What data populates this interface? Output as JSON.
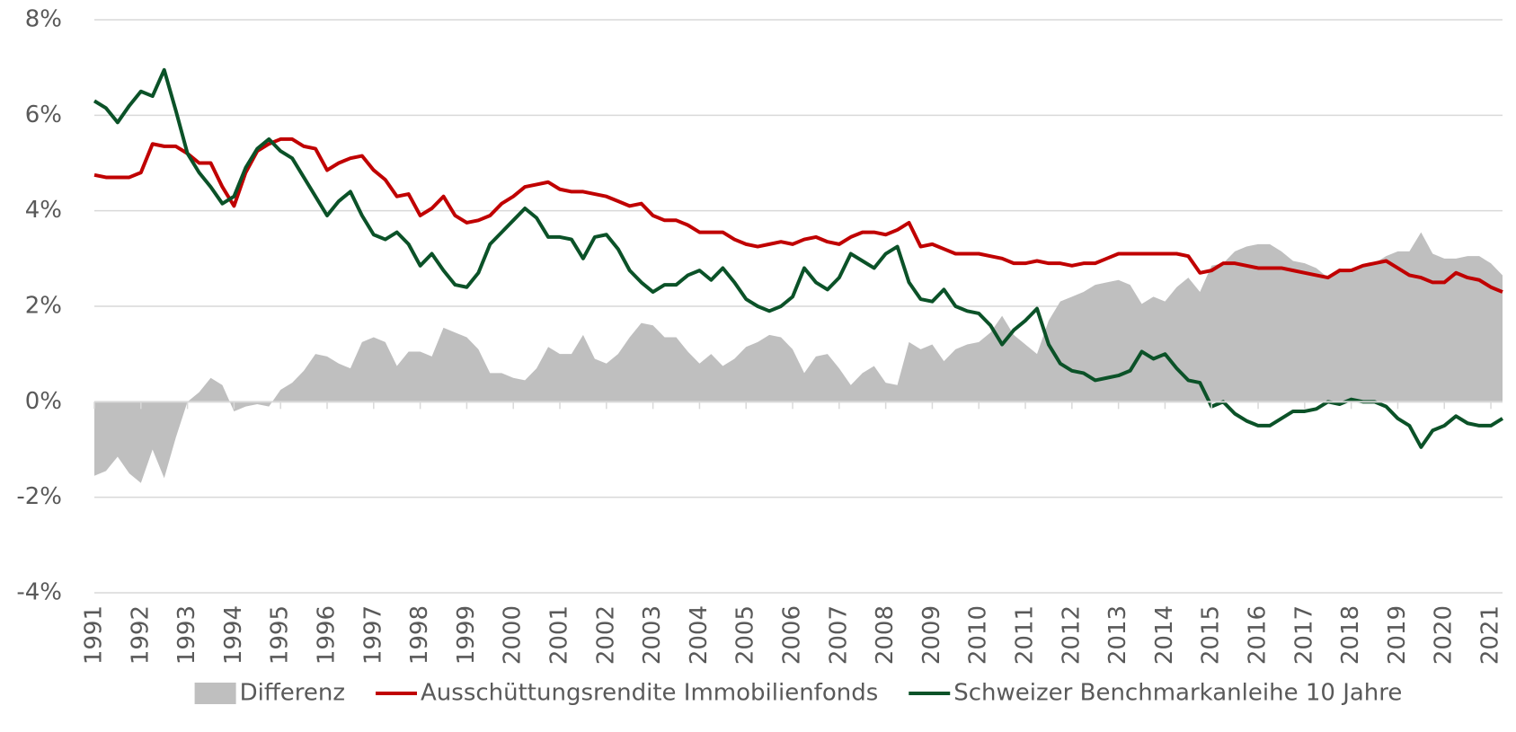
{
  "chart_data": {
    "type": "line",
    "x": [
      1991,
      1991.25,
      1991.5,
      1991.75,
      1992,
      1992.25,
      1992.5,
      1992.75,
      1993,
      1993.25,
      1993.5,
      1993.75,
      1994,
      1994.25,
      1994.5,
      1994.75,
      1995,
      1995.25,
      1995.5,
      1995.75,
      1996,
      1996.25,
      1996.5,
      1996.75,
      1997,
      1997.25,
      1997.5,
      1997.75,
      1998,
      1998.25,
      1998.5,
      1998.75,
      1999,
      1999.25,
      1999.5,
      1999.75,
      2000,
      2000.25,
      2000.5,
      2000.75,
      2001,
      2001.25,
      2001.5,
      2001.75,
      2002,
      2002.25,
      2002.5,
      2002.75,
      2003,
      2003.25,
      2003.5,
      2003.75,
      2004,
      2004.25,
      2004.5,
      2004.75,
      2005,
      2005.25,
      2005.5,
      2005.75,
      2006,
      2006.25,
      2006.5,
      2006.75,
      2007,
      2007.25,
      2007.5,
      2007.75,
      2008,
      2008.25,
      2008.5,
      2008.75,
      2009,
      2009.25,
      2009.5,
      2009.75,
      2010,
      2010.25,
      2010.5,
      2010.75,
      2011,
      2011.25,
      2011.5,
      2011.75,
      2012,
      2012.25,
      2012.5,
      2012.75,
      2013,
      2013.25,
      2013.5,
      2013.75,
      2014,
      2014.25,
      2014.5,
      2014.75,
      2015,
      2015.25,
      2015.5,
      2015.75,
      2016,
      2016.25,
      2016.5,
      2016.75,
      2017,
      2017.25,
      2017.5,
      2017.75,
      2018,
      2018.25,
      2018.5,
      2018.75,
      2019,
      2019.25,
      2019.5,
      2019.75,
      2020,
      2020.25,
      2020.5,
      2020.75,
      2021,
      2021.25
    ],
    "series": [
      {
        "name": "Differenz",
        "type": "area",
        "color": "#bfbfbf",
        "values": [
          -1.55,
          -1.45,
          -1.15,
          -1.5,
          -1.7,
          -1.0,
          -1.6,
          -0.75,
          0,
          0.2,
          0.5,
          0.35,
          -0.2,
          -0.1,
          -0.05,
          -0.1,
          0.25,
          0.4,
          0.65,
          1.0,
          0.95,
          0.8,
          0.7,
          1.25,
          1.35,
          1.25,
          0.75,
          1.05,
          1.05,
          0.95,
          1.55,
          1.45,
          1.35,
          1.1,
          0.6,
          0.6,
          0.5,
          0.45,
          0.7,
          1.15,
          1.0,
          1.0,
          1.4,
          0.9,
          0.8,
          1.0,
          1.35,
          1.65,
          1.6,
          1.35,
          1.35,
          1.05,
          0.8,
          1.0,
          0.75,
          0.9,
          1.15,
          1.25,
          1.4,
          1.35,
          1.1,
          0.6,
          0.95,
          1.0,
          0.7,
          0.35,
          0.6,
          0.75,
          0.4,
          0.35,
          1.25,
          1.1,
          1.2,
          0.85,
          1.1,
          1.2,
          1.25,
          1.45,
          1.8,
          1.4,
          1.2,
          1.0,
          1.7,
          2.1,
          2.2,
          2.3,
          2.45,
          2.5,
          2.55,
          2.45,
          2.05,
          2.2,
          2.1,
          2.4,
          2.6,
          2.3,
          2.85,
          2.9,
          3.15,
          3.25,
          3.3,
          3.3,
          3.15,
          2.95,
          2.9,
          2.8,
          2.6,
          2.8,
          2.7,
          2.85,
          2.9,
          3.05,
          3.15,
          3.15,
          3.55,
          3.1,
          3.0,
          3.0,
          3.05,
          3.05,
          2.9,
          2.65
        ]
      },
      {
        "name": "Ausschüttungsrendite Immobilienfonds",
        "type": "line",
        "color": "#c00000",
        "values": [
          4.75,
          4.7,
          4.7,
          4.7,
          4.8,
          5.4,
          5.35,
          5.35,
          5.2,
          5.0,
          5.0,
          4.5,
          4.1,
          4.8,
          5.25,
          5.4,
          5.5,
          5.5,
          5.35,
          5.3,
          4.85,
          5.0,
          5.1,
          5.15,
          4.85,
          4.65,
          4.3,
          4.35,
          3.9,
          4.05,
          4.3,
          3.9,
          3.75,
          3.8,
          3.9,
          4.15,
          4.3,
          4.5,
          4.55,
          4.6,
          4.45,
          4.4,
          4.4,
          4.35,
          4.3,
          4.2,
          4.1,
          4.15,
          3.9,
          3.8,
          3.8,
          3.7,
          3.55,
          3.55,
          3.55,
          3.4,
          3.3,
          3.25,
          3.3,
          3.35,
          3.3,
          3.4,
          3.45,
          3.35,
          3.3,
          3.45,
          3.55,
          3.55,
          3.5,
          3.6,
          3.75,
          3.25,
          3.3,
          3.2,
          3.1,
          3.1,
          3.1,
          3.05,
          3.0,
          2.9,
          2.9,
          2.95,
          2.9,
          2.9,
          2.85,
          2.9,
          2.9,
          3.0,
          3.1,
          3.1,
          3.1,
          3.1,
          3.1,
          3.1,
          3.05,
          2.7,
          2.75,
          2.9,
          2.9,
          2.85,
          2.8,
          2.8,
          2.8,
          2.75,
          2.7,
          2.65,
          2.6,
          2.75,
          2.75,
          2.85,
          2.9,
          2.95,
          2.8,
          2.65,
          2.6,
          2.5,
          2.5,
          2.7,
          2.6,
          2.55,
          2.4,
          2.3
        ]
      },
      {
        "name": "Schweizer Benchmarkanleihe 10 Jahre",
        "type": "line",
        "color": "#0b5228",
        "values": [
          6.3,
          6.15,
          5.85,
          6.2,
          6.5,
          6.4,
          6.95,
          6.1,
          5.2,
          4.8,
          4.5,
          4.15,
          4.3,
          4.9,
          5.3,
          5.5,
          5.25,
          5.1,
          4.7,
          4.3,
          3.9,
          4.2,
          4.4,
          3.9,
          3.5,
          3.4,
          3.55,
          3.3,
          2.85,
          3.1,
          2.75,
          2.45,
          2.4,
          2.7,
          3.3,
          3.55,
          3.8,
          4.05,
          3.85,
          3.45,
          3.45,
          3.4,
          3.0,
          3.45,
          3.5,
          3.2,
          2.75,
          2.5,
          2.3,
          2.45,
          2.45,
          2.65,
          2.75,
          2.55,
          2.8,
          2.5,
          2.15,
          2.0,
          1.9,
          2.0,
          2.2,
          2.8,
          2.5,
          2.35,
          2.6,
          3.1,
          2.95,
          2.8,
          3.1,
          3.25,
          2.5,
          2.15,
          2.1,
          2.35,
          2.0,
          1.9,
          1.85,
          1.6,
          1.2,
          1.5,
          1.7,
          1.95,
          1.2,
          0.8,
          0.65,
          0.6,
          0.45,
          0.5,
          0.55,
          0.65,
          1.05,
          0.9,
          1.0,
          0.7,
          0.45,
          0.4,
          -0.1,
          0.0,
          -0.25,
          -0.4,
          -0.5,
          -0.5,
          -0.35,
          -0.2,
          -0.2,
          -0.15,
          0.0,
          -0.05,
          0.05,
          0.0,
          0.0,
          -0.1,
          -0.35,
          -0.5,
          -0.95,
          -0.6,
          -0.5,
          -0.3,
          -0.45,
          -0.5,
          -0.5,
          -0.35
        ]
      }
    ],
    "xlim": [
      1991,
      2021.25
    ],
    "xticks": [
      1991,
      1992,
      1993,
      1994,
      1995,
      1996,
      1997,
      1998,
      1999,
      2000,
      2001,
      2002,
      2003,
      2004,
      2005,
      2006,
      2007,
      2008,
      2009,
      2010,
      2011,
      2012,
      2013,
      2014,
      2015,
      2016,
      2017,
      2018,
      2019,
      2020,
      2021
    ],
    "ylim": [
      -4,
      8
    ],
    "yticks": [
      {
        "value": -4,
        "label": "-4%"
      },
      {
        "value": -2,
        "label": "-2%"
      },
      {
        "value": 0,
        "label": "0%"
      },
      {
        "value": 2,
        "label": "2%"
      },
      {
        "value": 4,
        "label": "4%"
      },
      {
        "value": 6,
        "label": "6%"
      },
      {
        "value": 8,
        "label": "8%"
      }
    ],
    "grid": true,
    "legend": "bottom"
  }
}
